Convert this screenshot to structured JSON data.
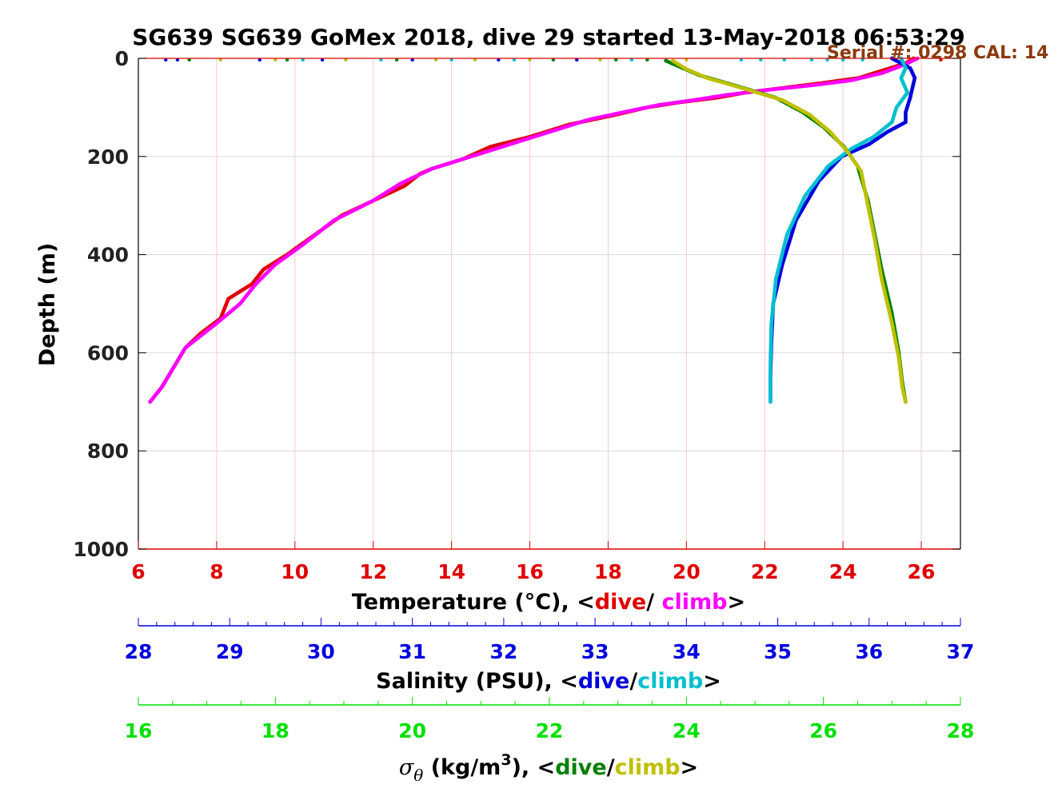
{
  "chart_data": {
    "type": "scatter",
    "title": "SG639 SG639 GoMex 2018, dive 29 started 13-May-2018 06:53:29",
    "annotation": "Serial #: 0298  CAL: 14",
    "ylabel": "Depth (m)",
    "ylim": [
      0,
      1000
    ],
    "y_reversed": true,
    "yticks": [
      "0",
      "200",
      "400",
      "600",
      "800",
      "1000"
    ],
    "grid": true,
    "x_axes": [
      {
        "name": "temperature",
        "label_prefix": "Temperature (°C), <",
        "label_dive": "dive",
        "label_sep": "/ ",
        "label_climb": "climb",
        "label_suffix": ">",
        "range": [
          6,
          27
        ],
        "ticks": [
          "6",
          "8",
          "10",
          "12",
          "14",
          "16",
          "18",
          "20",
          "22",
          "24",
          "26"
        ],
        "color": "#e00000",
        "dive_color": "#e00000",
        "climb_color": "#ff00ff"
      },
      {
        "name": "salinity",
        "label_prefix": "Salinity (PSU), <",
        "label_dive": "dive",
        "label_sep": "/",
        "label_climb": "climb",
        "label_suffix": ">",
        "range": [
          28,
          37
        ],
        "ticks": [
          "28",
          "29",
          "30",
          "31",
          "32",
          "33",
          "34",
          "35",
          "36",
          "37"
        ],
        "color": "#0000e0",
        "dive_color": "#0000dd",
        "climb_color": "#00c0d0"
      },
      {
        "name": "sigma_theta",
        "label_symbol": "σ",
        "label_symbol_sub": "θ",
        "label_unit": " (kg/m",
        "label_sup": "3",
        "label_prefix": "), <",
        "label_dive": "dive",
        "label_sep": "/",
        "label_climb": "climb",
        "label_suffix": ">",
        "range": [
          16,
          28
        ],
        "ticks": [
          "16",
          "18",
          "20",
          "22",
          "24",
          "26",
          "28"
        ],
        "color": "#00e000",
        "dive_color": "#008000",
        "climb_color": "#c0c000"
      }
    ],
    "series": [
      {
        "name": "dive",
        "axis": "temperature",
        "color": "#e00000",
        "x": [
          25.8,
          25.6,
          25.0,
          24.4,
          23.5,
          22.5,
          21.5,
          20.8,
          19.8,
          19.0,
          18.2,
          17.0,
          16.0,
          15.0,
          14.3,
          13.5,
          13.2,
          12.8,
          12.0,
          11.2,
          10.5,
          9.8,
          9.2,
          8.9,
          8.3,
          8.1,
          7.6,
          7.2,
          6.9,
          6.6,
          6.3
        ],
        "y": [
          0,
          10,
          25,
          40,
          50,
          60,
          70,
          80,
          90,
          100,
          115,
          135,
          160,
          180,
          205,
          225,
          235,
          260,
          290,
          320,
          360,
          400,
          430,
          460,
          490,
          530,
          560,
          590,
          630,
          670,
          700
        ]
      },
      {
        "name": "climb",
        "axis": "temperature",
        "color": "#ff00ff",
        "x": [
          25.9,
          25.6,
          25.0,
          24.2,
          23.2,
          22.0,
          21.0,
          20.2,
          19.3,
          18.5,
          17.5,
          16.5,
          15.5,
          14.5,
          13.5,
          12.7,
          12.0,
          11.0,
          10.2,
          9.5,
          9.0,
          8.6,
          8.0,
          7.6,
          7.2,
          6.9,
          6.6,
          6.3
        ],
        "y": [
          0,
          12,
          30,
          45,
          55,
          65,
          75,
          85,
          95,
          108,
          125,
          150,
          175,
          200,
          225,
          255,
          290,
          330,
          380,
          420,
          460,
          500,
          540,
          565,
          590,
          630,
          670,
          700
        ]
      },
      {
        "name": "dive",
        "axis": "salinity",
        "color": "#0000dd",
        "x": [
          36.25,
          36.45,
          36.5,
          36.45,
          36.4,
          36.4,
          36.2,
          36.0,
          35.7,
          35.45,
          35.2,
          35.05,
          34.95,
          34.93,
          34.92,
          34.92
        ],
        "y": [
          0,
          20,
          40,
          80,
          110,
          130,
          150,
          175,
          200,
          250,
          330,
          420,
          500,
          580,
          650,
          700
        ]
      },
      {
        "name": "climb",
        "axis": "salinity",
        "color": "#00c0d0",
        "x": [
          36.35,
          36.4,
          36.35,
          36.42,
          36.3,
          36.25,
          36.05,
          35.8,
          35.55,
          35.3,
          35.1,
          34.98,
          34.93,
          34.92,
          34.92
        ],
        "y": [
          0,
          20,
          40,
          70,
          100,
          130,
          160,
          185,
          220,
          280,
          360,
          450,
          540,
          620,
          700
        ]
      },
      {
        "name": "dive",
        "axis": "sigma_theta",
        "color": "#008000",
        "x": [
          23.7,
          23.95,
          24.2,
          24.7,
          25.3,
          25.7,
          26.0,
          26.3,
          26.5,
          26.65,
          26.75,
          26.85,
          27.0,
          27.1,
          27.15,
          27.2
        ],
        "y": [
          5,
          20,
          35,
          55,
          80,
          110,
          140,
          180,
          220,
          290,
          360,
          430,
          520,
          600,
          660,
          700
        ]
      },
      {
        "name": "climb",
        "axis": "sigma_theta",
        "color": "#c0c000",
        "x": [
          23.8,
          24.0,
          24.3,
          24.8,
          25.4,
          25.8,
          26.1,
          26.35,
          26.55,
          26.65,
          26.75,
          26.85,
          27.0,
          27.1,
          27.15,
          27.2
        ],
        "y": [
          5,
          22,
          40,
          60,
          85,
          115,
          150,
          190,
          230,
          300,
          370,
          450,
          540,
          610,
          670,
          700
        ]
      }
    ],
    "surface_points": {
      "y": 3,
      "x": [
        6.7,
        7.0,
        7.3,
        8.1,
        9.1,
        9.5,
        9.8,
        10.2,
        10.7,
        11.3,
        12.2,
        12.6,
        13.0,
        13.6,
        14.0,
        14.6,
        15.2,
        15.6,
        16.0,
        16.6,
        17.2,
        17.8,
        18.2,
        18.6,
        19.0,
        20.0,
        21.4,
        21.9,
        22.5,
        23.2,
        23.6,
        24.0,
        24.5,
        26.5
      ],
      "colors": [
        "#0000dd",
        "#0000dd",
        "#008000",
        "#c0c000",
        "#0000dd",
        "#c0c000",
        "#008000",
        "#00c0d0",
        "#0000dd",
        "#c0c000",
        "#00c0d0",
        "#008000",
        "#0000dd",
        "#c0c000",
        "#00c0d0",
        "#c0c000",
        "#0000dd",
        "#00c0d0",
        "#c0c000",
        "#008000",
        "#0000dd",
        "#c0c000",
        "#008000",
        "#00c0d0",
        "#008000",
        "#c0c000",
        "#00c0d0",
        "#00c0d0",
        "#00c0d0",
        "#00c0d0",
        "#00c0d0",
        "#00c0d0",
        "#00c0d0",
        "#e00000"
      ]
    }
  }
}
